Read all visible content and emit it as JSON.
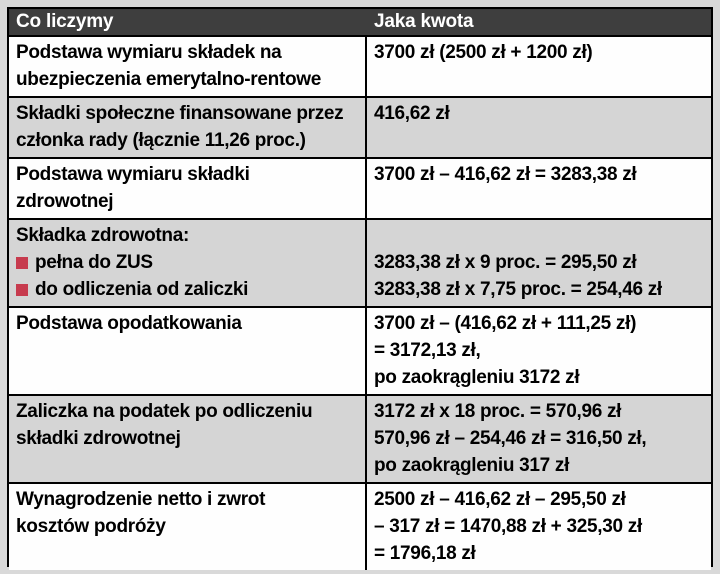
{
  "colors": {
    "page_bg": "#d9d9d9",
    "header_bg": "#3e3e3e",
    "header_text": "#ffffff",
    "row_bg": "#fefefe",
    "row_bg_shaded": "#d5d5d5",
    "border": "#000000",
    "text": "#000000",
    "bullet": "#c73b4e"
  },
  "table": {
    "headers": [
      "Co liczymy",
      "Jaka kwota"
    ],
    "rows": [
      {
        "shaded": false,
        "label_lines": [
          "Podstawa wymiaru składek na",
          "ubezpieczenia emerytalno-rentowe"
        ],
        "value_lines": [
          "3700 zł (2500 zł + 1200 zł)"
        ]
      },
      {
        "shaded": true,
        "label_lines": [
          "Składki społeczne finansowane przez",
          "członka rady (łącznie 11,26 proc.)"
        ],
        "value_lines": [
          "416,62 zł"
        ]
      },
      {
        "shaded": false,
        "label_lines": [
          "Podstawa wymiaru składki",
          "zdrowotnej"
        ],
        "value_lines": [
          "3700 zł – 416,62 zł = 3283,38 zł"
        ]
      },
      {
        "shaded": true,
        "label_lines": [
          "Składka zdrowotna:"
        ],
        "label_bullets": [
          "pełna do ZUS",
          "do odliczenia od zaliczki"
        ],
        "value_lines": [
          "",
          "3283,38 zł x 9 proc. = 295,50 zł",
          "3283,38 zł x 7,75 proc. = 254,46 zł"
        ]
      },
      {
        "shaded": false,
        "label_lines": [
          "Podstawa opodatkowania"
        ],
        "value_lines": [
          "3700 zł – (416,62 zł + 111,25 zł)",
          "= 3172,13 zł,",
          "po zaokrągleniu 3172 zł"
        ]
      },
      {
        "shaded": true,
        "label_lines": [
          "Zaliczka na podatek po odliczeniu",
          "składki zdrowotnej"
        ],
        "value_lines": [
          "3172 zł x 18 proc. = 570,96 zł",
          "570,96 zł – 254,46 zł = 316,50 zł,",
          "po zaokrągleniu 317 zł"
        ]
      },
      {
        "shaded": false,
        "label_lines": [
          "Wynagrodzenie netto i zwrot",
          "kosztów podróży"
        ],
        "value_lines": [
          "2500 zł – 416,62 zł – 295,50 zł",
          "– 317 zł = 1470,88 zł + 325,30 zł",
          "= 1796,18 zł"
        ]
      }
    ]
  }
}
